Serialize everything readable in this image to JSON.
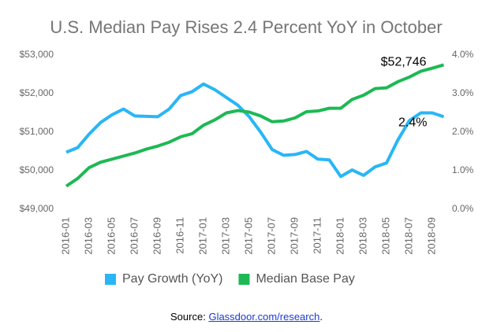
{
  "chart_data": {
    "type": "line",
    "title": "U.S. Median Pay Rises 2.4 Percent YoY in October",
    "categories": [
      "2016-01",
      null,
      "2016-03",
      null,
      "2016-05",
      null,
      "2016-07",
      null,
      "2016-09",
      null,
      "2016-11",
      null,
      "2017-01",
      null,
      "2017-03",
      null,
      "2017-05",
      null,
      "2017-07",
      null,
      "2017-09",
      null,
      "2017-11",
      null,
      "2018-01",
      null,
      "2018-03",
      null,
      "2018-05",
      null,
      "2018-07",
      null,
      "2018-09",
      null
    ],
    "series": [
      {
        "name": "Pay Growth (YoY)",
        "color": "#29b6f6",
        "axis": "y2",
        "values": [
          1.48,
          1.6,
          1.95,
          2.25,
          2.45,
          2.6,
          2.42,
          2.41,
          2.4,
          2.6,
          2.95,
          3.05,
          3.25,
          3.1,
          2.9,
          2.7,
          2.4,
          2.0,
          1.55,
          1.4,
          1.42,
          1.5,
          1.3,
          1.28,
          0.85,
          1.02,
          0.88,
          1.1,
          1.2,
          1.8,
          2.3,
          2.5,
          2.5,
          2.4
        ]
      },
      {
        "name": "Median Base Pay",
        "color": "#1db954",
        "values": [
          49600,
          49800,
          50080,
          50220,
          50300,
          50380,
          50460,
          50560,
          50640,
          50740,
          50880,
          50960,
          51180,
          51320,
          51500,
          51560,
          51520,
          51420,
          51270,
          51290,
          51370,
          51530,
          51550,
          51620,
          51620,
          51850,
          51960,
          52130,
          52150,
          52310,
          52430,
          52580,
          52660,
          52746
        ]
      }
    ],
    "annotations": [
      "$52,746",
      "2.4%"
    ],
    "ylim": [
      49000,
      53000
    ],
    "yticks": [
      {
        "value": 49000,
        "label": "$49,000"
      },
      {
        "value": 50000,
        "label": "$50,000"
      },
      {
        "value": 51000,
        "label": "$51,000"
      },
      {
        "value": 52000,
        "label": "$52,000"
      },
      {
        "value": 53000,
        "label": "$53,000"
      }
    ],
    "y2lim": [
      0,
      4
    ],
    "y2ticks": [
      {
        "value": 0,
        "label": "0.0%"
      },
      {
        "value": 1,
        "label": "1.0%"
      },
      {
        "value": 2,
        "label": "2.0%"
      },
      {
        "value": 3,
        "label": "3.0%"
      },
      {
        "value": 4,
        "label": "4.0%"
      }
    ],
    "grid": false,
    "legend": "bottom",
    "source": "Source:",
    "source_link": "Glassdoor.com/research",
    "source_end": "."
  }
}
